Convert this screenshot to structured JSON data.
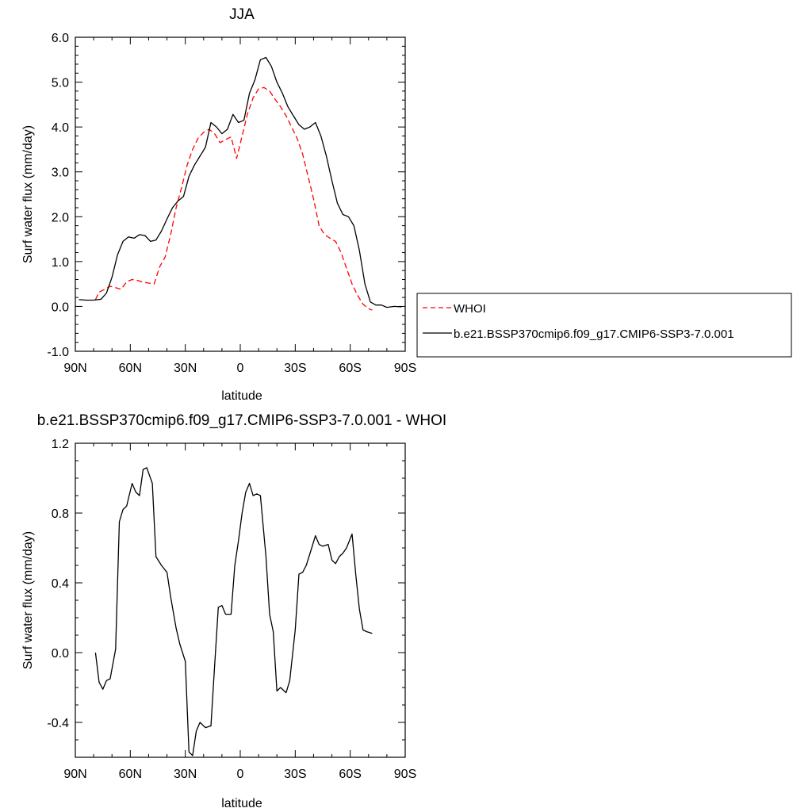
{
  "chart_data": [
    {
      "type": "line",
      "title": "JJA",
      "xlabel": "latitude",
      "ylabel": "Surf water flux (mm/day)",
      "xlim": [
        90,
        -90
      ],
      "ylim": [
        -1.0,
        6.0
      ],
      "xticks": [
        90,
        60,
        30,
        0,
        -30,
        -60,
        -90
      ],
      "xtick_labels": [
        "90N",
        "60N",
        "30N",
        "0",
        "30S",
        "60S",
        "90S"
      ],
      "yticks": [
        -1.0,
        0.0,
        1.0,
        2.0,
        3.0,
        4.0,
        5.0,
        6.0
      ],
      "ytick_labels": [
        "-1.0",
        "0.0",
        "1.0",
        "2.0",
        "3.0",
        "4.0",
        "5.0",
        "6.0"
      ],
      "grid": false,
      "legend_placement": "outside-right",
      "series": [
        {
          "name": "WHOI",
          "color": "#ff0000",
          "dash": "dashed",
          "x": [
            79,
            77,
            74,
            71,
            68,
            65,
            62,
            59,
            56,
            53,
            50,
            47,
            44,
            41,
            38,
            35,
            32,
            29,
            26,
            23,
            20,
            17,
            14,
            11,
            8,
            5,
            2,
            -1,
            -4,
            -7,
            -10,
            -13,
            -16,
            -19,
            -22,
            -25,
            -28,
            -31,
            -34,
            -37,
            -40,
            -43,
            -46,
            -49,
            -52,
            -55,
            -58,
            -61,
            -64,
            -67,
            -70,
            -72
          ],
          "y": [
            0.15,
            0.32,
            0.38,
            0.45,
            0.42,
            0.38,
            0.55,
            0.6,
            0.58,
            0.54,
            0.52,
            0.5,
            0.88,
            1.1,
            1.6,
            2.2,
            2.65,
            3.15,
            3.5,
            3.75,
            3.88,
            3.95,
            3.85,
            3.65,
            3.72,
            3.78,
            3.3,
            3.8,
            4.3,
            4.65,
            4.85,
            4.88,
            4.8,
            4.62,
            4.45,
            4.25,
            4.0,
            3.75,
            3.4,
            2.9,
            2.4,
            1.8,
            1.6,
            1.52,
            1.45,
            1.2,
            0.85,
            0.5,
            0.25,
            0.05,
            -0.05,
            -0.08
          ]
        },
        {
          "name": "b.e21.BSSP370cmip6.f09_g17.CMIP6-SSP3-7.0.001",
          "color": "#000000",
          "dash": "solid",
          "x": [
            88,
            84,
            80,
            76,
            73,
            70,
            67,
            64,
            61,
            58,
            55,
            52,
            49,
            46,
            43,
            40,
            37,
            34,
            31,
            28,
            25,
            22,
            19,
            16,
            13,
            10,
            7,
            4,
            1,
            -2,
            -5,
            -8,
            -11,
            -14,
            -17,
            -20,
            -23,
            -26,
            -29,
            -32,
            -35,
            -38,
            -41,
            -44,
            -47,
            -50,
            -53,
            -56,
            -59,
            -62,
            -65,
            -68,
            -71,
            -74,
            -77,
            -80,
            -84,
            -88
          ],
          "y": [
            0.15,
            0.14,
            0.14,
            0.16,
            0.3,
            0.65,
            1.15,
            1.45,
            1.55,
            1.52,
            1.6,
            1.58,
            1.45,
            1.48,
            1.68,
            1.95,
            2.2,
            2.35,
            2.45,
            2.9,
            3.15,
            3.35,
            3.55,
            4.1,
            4.0,
            3.85,
            3.95,
            4.28,
            4.1,
            4.15,
            4.75,
            5.05,
            5.5,
            5.55,
            5.35,
            5.0,
            4.75,
            4.45,
            4.25,
            4.05,
            3.95,
            4.0,
            4.1,
            3.8,
            3.35,
            2.8,
            2.3,
            2.05,
            2.0,
            1.8,
            1.25,
            0.5,
            0.1,
            0.03,
            0.03,
            -0.02,
            0.0,
            -0.01
          ]
        }
      ]
    },
    {
      "type": "line",
      "title": "b.e21.BSSP370cmip6.f09_g17.CMIP6-SSP3-7.0.001 - WHOI",
      "xlabel": "latitude",
      "ylabel": "Surf water flux (mm/day)",
      "xlim": [
        90,
        -90
      ],
      "ylim": [
        -0.6,
        1.2
      ],
      "xticks": [
        90,
        60,
        30,
        0,
        -30,
        -60,
        -90
      ],
      "xtick_labels": [
        "90N",
        "60N",
        "30N",
        "0",
        "30S",
        "60S",
        "90S"
      ],
      "yticks": [
        -0.4,
        0.0,
        0.4,
        0.8,
        1.2
      ],
      "ytick_labels": [
        "-0.4",
        "0.0",
        "0.4",
        "0.8",
        "1.2"
      ],
      "grid": false,
      "series": [
        {
          "color": "#000000",
          "dash": "solid",
          "x": [
            79,
            77,
            75,
            73,
            71,
            68,
            66,
            64,
            62,
            59,
            57,
            55,
            53,
            51,
            48,
            46,
            43,
            40,
            38,
            35,
            33,
            30,
            28,
            26,
            24,
            22,
            19,
            16,
            14,
            12,
            10,
            8,
            5,
            3,
            1,
            -1,
            -3,
            -5,
            -7,
            -9,
            -11,
            -14,
            -16,
            -18,
            -20,
            -22,
            -25,
            -27,
            -30,
            -32,
            -34,
            -36,
            -39,
            -41,
            -43,
            -45,
            -48,
            -50,
            -52,
            -54,
            -56,
            -58,
            -61,
            -63,
            -65,
            -67,
            -69,
            -72
          ],
          "y": [
            0.0,
            -0.17,
            -0.21,
            -0.16,
            -0.15,
            0.02,
            0.75,
            0.82,
            0.84,
            0.97,
            0.92,
            0.9,
            1.05,
            1.06,
            0.97,
            0.55,
            0.5,
            0.46,
            0.32,
            0.14,
            0.05,
            -0.05,
            -0.57,
            -0.59,
            -0.45,
            -0.4,
            -0.43,
            -0.42,
            -0.08,
            0.26,
            0.27,
            0.22,
            0.22,
            0.5,
            0.64,
            0.8,
            0.92,
            0.97,
            0.9,
            0.91,
            0.9,
            0.55,
            0.22,
            0.12,
            -0.22,
            -0.2,
            -0.23,
            -0.16,
            0.13,
            0.45,
            0.46,
            0.5,
            0.6,
            0.67,
            0.62,
            0.61,
            0.62,
            0.53,
            0.51,
            0.55,
            0.57,
            0.6,
            0.68,
            0.45,
            0.25,
            0.13,
            0.12,
            0.11
          ]
        }
      ]
    }
  ]
}
